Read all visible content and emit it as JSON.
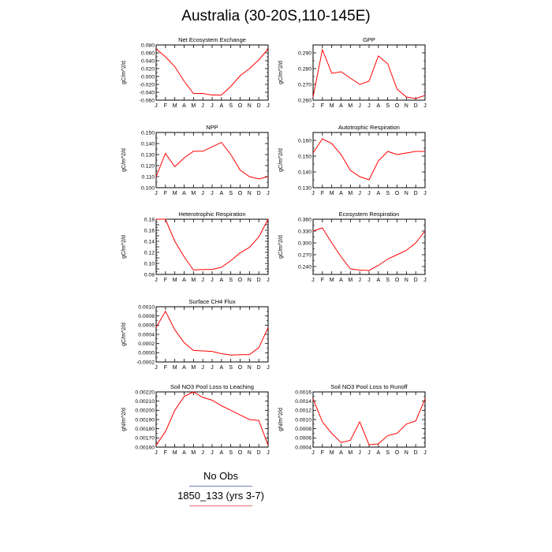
{
  "figure": {
    "title": "Australia (30-20S,110-145E)",
    "legend": [
      {
        "label": "No Obs",
        "color": "#6f7fb5"
      },
      {
        "label": "1850_133 (yrs 3-7)",
        "color": "#e8706f"
      }
    ]
  },
  "chart_data": [
    {
      "type": "line",
      "title": "Net Ecosystem Exchange",
      "ylabel": "gC/m^2/d",
      "categories": [
        "J",
        "F",
        "M",
        "A",
        "M",
        "J",
        "J",
        "A",
        "S",
        "O",
        "N",
        "D",
        "J"
      ],
      "ylim": [
        -0.06,
        0.08
      ],
      "yticks": [
        -0.06,
        -0.04,
        -0.02,
        0.0,
        0.02,
        0.04,
        0.06,
        0.08
      ],
      "ytick_labels": [
        "-0.060",
        "-0.040",
        "-0.020",
        "0.000",
        "0.020",
        "0.040",
        "0.060",
        "0.080"
      ],
      "series": [
        {
          "color": "#ff0000",
          "values": [
            0.07,
            0.05,
            0.025,
            -0.012,
            -0.043,
            -0.043,
            -0.047,
            -0.047,
            -0.025,
            0.002,
            0.02,
            0.042,
            0.07
          ]
        }
      ]
    },
    {
      "type": "line",
      "title": "GPP",
      "ylabel": "gC/m^2/d",
      "categories": [
        "J",
        "F",
        "M",
        "A",
        "M",
        "J",
        "J",
        "A",
        "S",
        "O",
        "N",
        "D",
        "J"
      ],
      "ylim": [
        0.26,
        0.295
      ],
      "yticks": [
        0.26,
        0.27,
        0.28,
        0.29
      ],
      "ytick_labels": [
        "0.260",
        "0.270",
        "0.280",
        "0.290"
      ],
      "series": [
        {
          "color": "#ff0000",
          "values": [
            0.262,
            0.292,
            0.277,
            0.278,
            0.274,
            0.27,
            0.272,
            0.288,
            0.283,
            0.267,
            0.262,
            0.261,
            0.263
          ]
        }
      ]
    },
    {
      "type": "line",
      "title": "NPP",
      "ylabel": "gC/m^2/d",
      "categories": [
        "J",
        "F",
        "M",
        "A",
        "M",
        "J",
        "J",
        "A",
        "S",
        "O",
        "N",
        "D",
        "J"
      ],
      "ylim": [
        0.1,
        0.15
      ],
      "yticks": [
        0.1,
        0.11,
        0.12,
        0.13,
        0.14,
        0.15
      ],
      "ytick_labels": [
        "0.100",
        "0.110",
        "0.120",
        "0.130",
        "0.140",
        "0.150"
      ],
      "series": [
        {
          "color": "#ff0000",
          "values": [
            0.11,
            0.131,
            0.119,
            0.127,
            0.133,
            0.133,
            0.137,
            0.141,
            0.13,
            0.116,
            0.11,
            0.108,
            0.11
          ]
        }
      ]
    },
    {
      "type": "line",
      "title": "Autotrophic Respiration",
      "ylabel": "gC/m^2/d",
      "categories": [
        "J",
        "F",
        "M",
        "A",
        "M",
        "J",
        "J",
        "A",
        "S",
        "O",
        "N",
        "D",
        "J"
      ],
      "ylim": [
        0.13,
        0.165
      ],
      "yticks": [
        0.13,
        0.14,
        0.15,
        0.16
      ],
      "ytick_labels": [
        "0.130",
        "0.140",
        "0.150",
        "0.160"
      ],
      "series": [
        {
          "color": "#ff0000",
          "values": [
            0.152,
            0.161,
            0.158,
            0.151,
            0.141,
            0.137,
            0.135,
            0.147,
            0.153,
            0.151,
            0.152,
            0.153,
            0.153
          ]
        }
      ]
    },
    {
      "type": "line",
      "title": "Heterotrophic Respiration",
      "ylabel": "gC/m^2/d",
      "categories": [
        "J",
        "F",
        "M",
        "A",
        "M",
        "J",
        "J",
        "A",
        "S",
        "O",
        "N",
        "D",
        "J"
      ],
      "ylim": [
        0.08,
        0.18
      ],
      "yticks": [
        0.08,
        0.09,
        0.1,
        0.11,
        0.12,
        0.13,
        0.14,
        0.15,
        0.16,
        0.17,
        0.18
      ],
      "ytick_labels": [
        "0.08",
        "",
        "0.10",
        "",
        "0.12",
        "",
        "0.14",
        "",
        "0.16",
        "",
        "0.18"
      ],
      "series": [
        {
          "color": "#ff0000",
          "values": [
            0.18,
            0.18,
            0.14,
            0.112,
            0.088,
            0.089,
            0.089,
            0.093,
            0.105,
            0.119,
            0.129,
            0.148,
            0.18
          ]
        }
      ]
    },
    {
      "type": "line",
      "title": "Ecosystem Respiration",
      "ylabel": "gC/m^2/d",
      "categories": [
        "J",
        "F",
        "M",
        "A",
        "M",
        "J",
        "J",
        "A",
        "S",
        "O",
        "N",
        "D",
        "J"
      ],
      "ylim": [
        0.22,
        0.36
      ],
      "yticks": [
        0.22,
        0.24,
        0.27,
        0.3,
        0.33,
        0.36
      ],
      "ytick_labels": [
        "",
        "0.240",
        "0.270",
        "0.300",
        "0.330",
        "0.360"
      ],
      "series": [
        {
          "color": "#ff0000",
          "values": [
            0.33,
            0.338,
            0.3,
            0.265,
            0.234,
            0.231,
            0.23,
            0.243,
            0.259,
            0.27,
            0.281,
            0.3,
            0.33
          ]
        }
      ]
    },
    {
      "type": "line",
      "title": "Surface CH4 Flux",
      "ylabel": "gC/m^2/d",
      "categories": [
        "J",
        "F",
        "M",
        "A",
        "M",
        "J",
        "J",
        "A",
        "S",
        "O",
        "N",
        "D",
        "J"
      ],
      "ylim": [
        -0.0002,
        0.001
      ],
      "yticks": [
        -0.0002,
        0.0,
        0.0002,
        0.0004,
        0.0006,
        0.0008,
        0.001
      ],
      "ytick_labels": [
        "-0.0002",
        "0.0000",
        "0.0002",
        "0.0004",
        "0.0006",
        "0.0008",
        "0.0010"
      ],
      "series": [
        {
          "color": "#ff0000",
          "values": [
            0.00055,
            0.0009,
            0.0005,
            0.00022,
            5e-05,
            4e-05,
            3e-05,
            -2e-05,
            -5e-05,
            -4e-05,
            -4e-05,
            0.00011,
            0.00055
          ]
        }
      ]
    },
    {
      "type": "line",
      "title": "Soil NO3 Pool Loss to Leaching",
      "ylabel": "gN/m^2/d",
      "categories": [
        "J",
        "F",
        "M",
        "A",
        "M",
        "J",
        "J",
        "A",
        "S",
        "O",
        "N",
        "D",
        "J"
      ],
      "ylim": [
        0.0016,
        0.0022
      ],
      "yticks": [
        0.0016,
        0.0017,
        0.0018,
        0.0019,
        0.002,
        0.0021,
        0.0022
      ],
      "ytick_labels": [
        "0.00160",
        "0.00170",
        "0.00180",
        "0.00190",
        "0.00200",
        "0.00210",
        "0.00220"
      ],
      "series": [
        {
          "color": "#ff0000",
          "values": [
            0.00162,
            0.00177,
            0.002,
            0.00215,
            0.0022,
            0.00214,
            0.00211,
            0.00205,
            0.002,
            0.00195,
            0.0019,
            0.00189,
            0.00162
          ]
        }
      ]
    },
    {
      "type": "line",
      "title": "Soil NO3 Pool Loss to Runoff",
      "ylabel": "gN/m^2/d",
      "categories": [
        "J",
        "F",
        "M",
        "A",
        "M",
        "J",
        "J",
        "A",
        "S",
        "O",
        "N",
        "D",
        "J"
      ],
      "ylim": [
        0.0004,
        0.0016
      ],
      "yticks": [
        0.0004,
        0.0006,
        0.0008,
        0.001,
        0.0012,
        0.0014,
        0.0016
      ],
      "ytick_labels": [
        "0.0004",
        "0.0006",
        "0.0008",
        "0.0010",
        "0.0012",
        "0.0014",
        "0.0016"
      ],
      "series": [
        {
          "color": "#ff0000",
          "values": [
            0.00145,
            0.00095,
            0.0007,
            0.0005,
            0.00055,
            0.00095,
            0.00045,
            0.00047,
            0.00065,
            0.0007,
            0.0009,
            0.00097,
            0.00145
          ]
        }
      ]
    }
  ]
}
